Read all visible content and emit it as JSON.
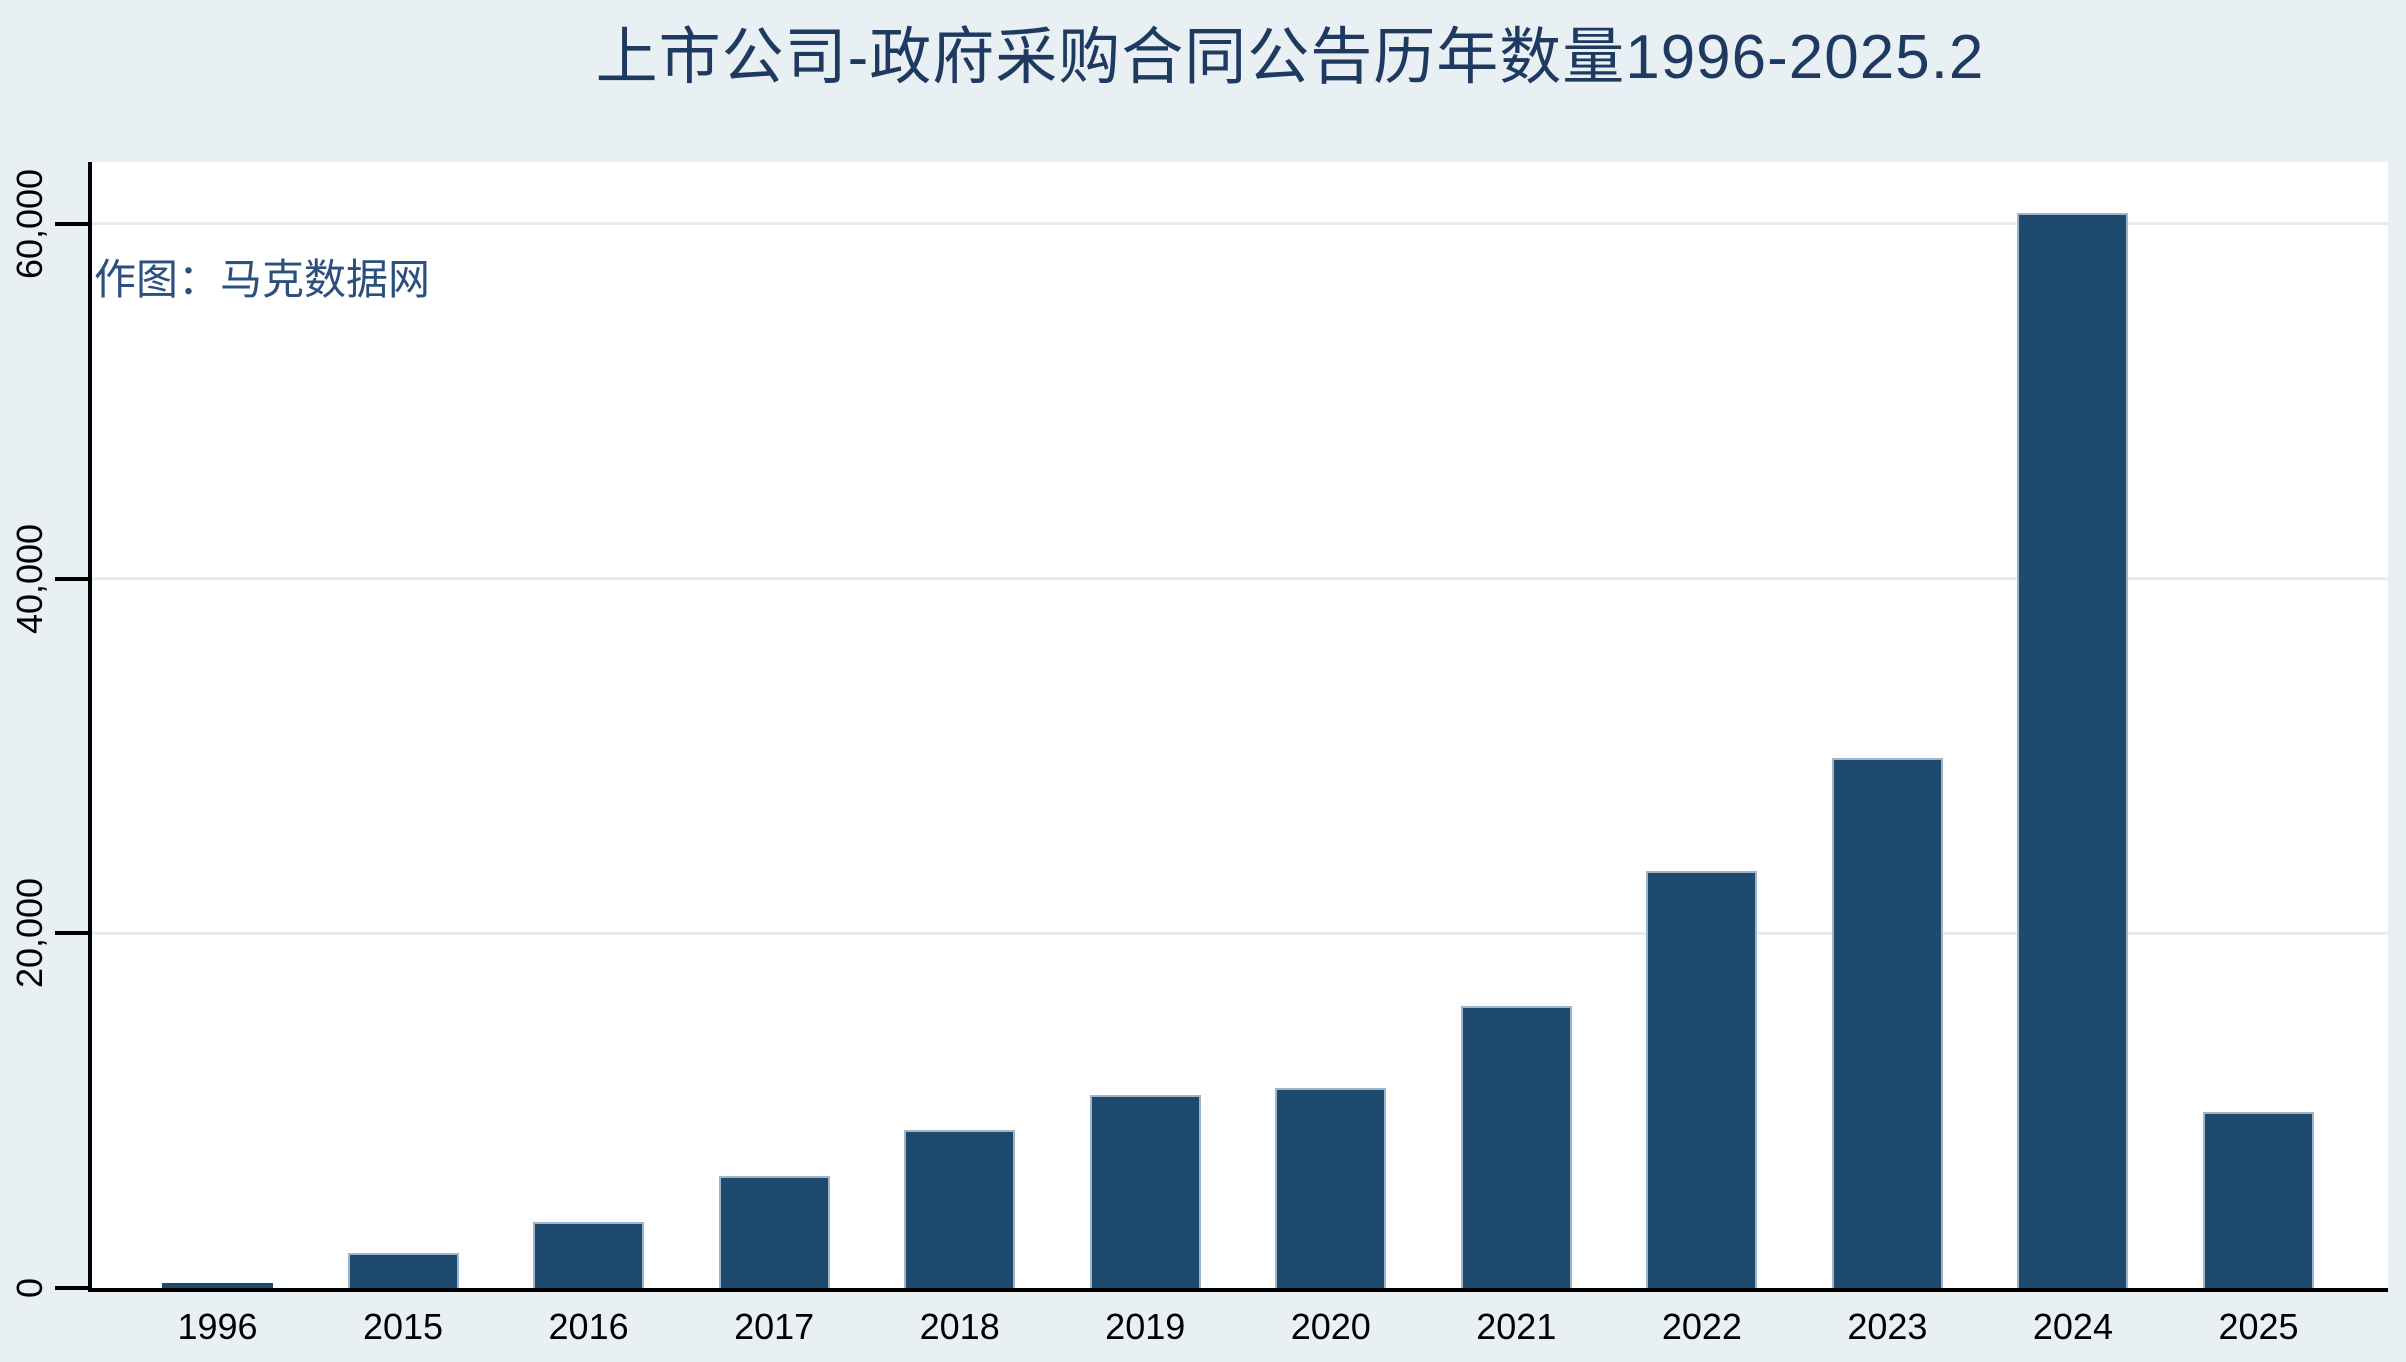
{
  "title": "上市公司-政府采购合同公告历年数量1996-2025.2",
  "watermark": "作图：马克数据网",
  "colors": {
    "page_background": "#e9f0f3",
    "plot_background": "#ffffff",
    "bar_fill": "#1d4a6e",
    "bar_border": "#9fb6c9",
    "title_text": "#1f3a60",
    "watermark_text": "#2b4f7e",
    "axis": "#000000",
    "gridline": "#e4edf0"
  },
  "chart_data": {
    "type": "bar",
    "title": "上市公司-政府采购合同公告历年数量1996-2025.2",
    "xlabel": "",
    "ylabel": "",
    "categories": [
      "1996",
      "2015",
      "2016",
      "2017",
      "2018",
      "2019",
      "2020",
      "2021",
      "2022",
      "2023",
      "2024",
      "2025"
    ],
    "values": [
      300,
      2000,
      3700,
      6300,
      8900,
      10900,
      11300,
      15900,
      23500,
      29900,
      60600,
      9900
    ],
    "ylim": [
      0,
      63500
    ],
    "yticks": [
      0,
      20000,
      40000,
      60000
    ],
    "ytick_labels": [
      "0",
      "20,000",
      "40,000",
      "60,000"
    ],
    "grid": true,
    "legend_position": "none",
    "annotation": "作图：马克数据网"
  }
}
